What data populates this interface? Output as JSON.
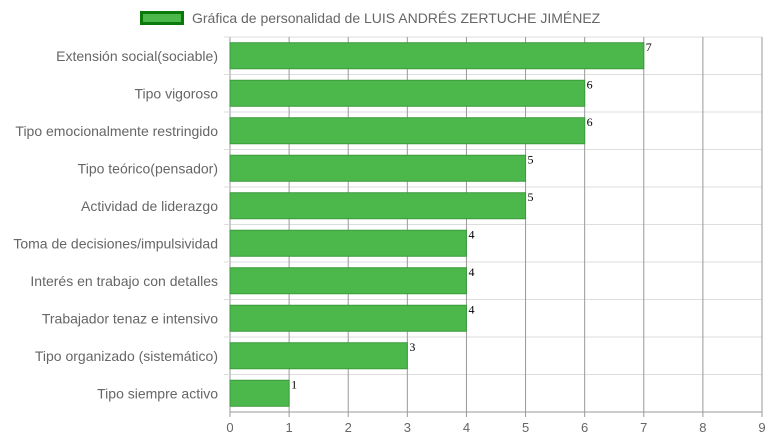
{
  "legend": {
    "label": "Gráfica de personalidad de LUIS ANDRÉS ZERTUCHE JIMÉNEZ"
  },
  "colors": {
    "bar_fill": "#4cb84c",
    "bar_border": "#3a9a3a",
    "legend_border": "#0a7a0a",
    "grid": "#dddddd",
    "grid_vertical": "#999999",
    "label_text": "#666666",
    "value_text": "#000000"
  },
  "chart_data": {
    "type": "bar",
    "orientation": "horizontal",
    "categories": [
      "Extensión social(sociable)",
      "Tipo vigoroso",
      "Tipo emocionalmente restringido",
      "Tipo teórico(pensador)",
      "Actividad de liderazgo",
      "Toma de decisiones/impulsividad",
      "Interés en trabajo con detalles",
      "Trabajador tenaz e intensivo",
      "Tipo organizado (sistemático)",
      "Tipo siempre activo"
    ],
    "series": [
      {
        "name": "Gráfica de personalidad de LUIS ANDRÉS ZERTUCHE JIMÉNEZ",
        "values": [
          7,
          6,
          6,
          5,
          5,
          4,
          4,
          4,
          3,
          1
        ]
      }
    ],
    "xlim": [
      0,
      9
    ],
    "xticks": [
      "0",
      "1",
      "2",
      "3",
      "4",
      "5",
      "6",
      "7",
      "8",
      "9"
    ],
    "data_labels": [
      "7",
      "6",
      "6",
      "5",
      "5",
      "4",
      "4",
      "4",
      "3",
      "1"
    ],
    "grid": true,
    "legend_position": "top"
  }
}
